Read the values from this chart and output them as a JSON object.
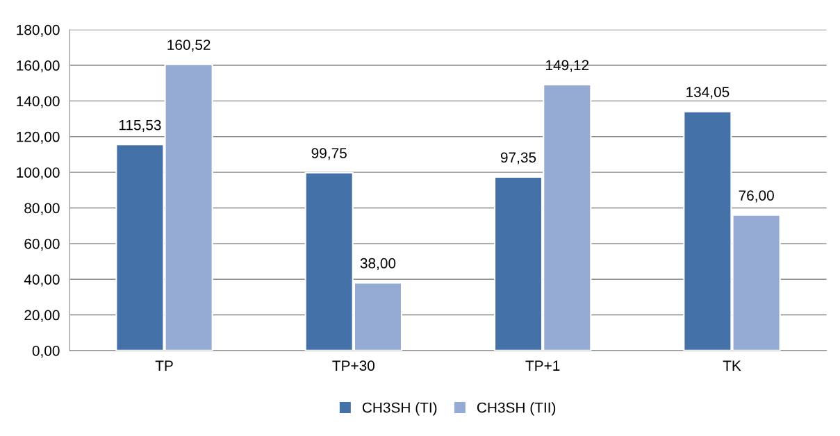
{
  "chart_data": {
    "type": "bar",
    "categories": [
      "TP",
      "TP+30",
      "TP+1",
      "TK"
    ],
    "series": [
      {
        "name": "CH3SH (TI)",
        "color": "#4471a7",
        "values": [
          115.53,
          99.75,
          97.35,
          134.05
        ],
        "value_labels": [
          "115,53",
          "99,75",
          "97,35",
          "134,05"
        ]
      },
      {
        "name": "CH3SH (TII)",
        "color": "#95abd3",
        "values": [
          160.52,
          38.0,
          149.12,
          76.0
        ],
        "value_labels": [
          "160,52",
          "38,00",
          "149,12",
          "76,00"
        ]
      }
    ],
    "ylim": [
      0,
      180
    ],
    "yticks": [
      {
        "value": 0,
        "label": "0,00"
      },
      {
        "value": 20,
        "label": "20,00"
      },
      {
        "value": 40,
        "label": "40,00"
      },
      {
        "value": 60,
        "label": "60,00"
      },
      {
        "value": 80,
        "label": "80,00"
      },
      {
        "value": 100,
        "label": "100,00"
      },
      {
        "value": 120,
        "label": "120,00"
      },
      {
        "value": 140,
        "label": "140,00"
      },
      {
        "value": 160,
        "label": "160,00"
      },
      {
        "value": 180,
        "label": "180,00"
      }
    ],
    "grid": "y",
    "legend": "bottom"
  }
}
